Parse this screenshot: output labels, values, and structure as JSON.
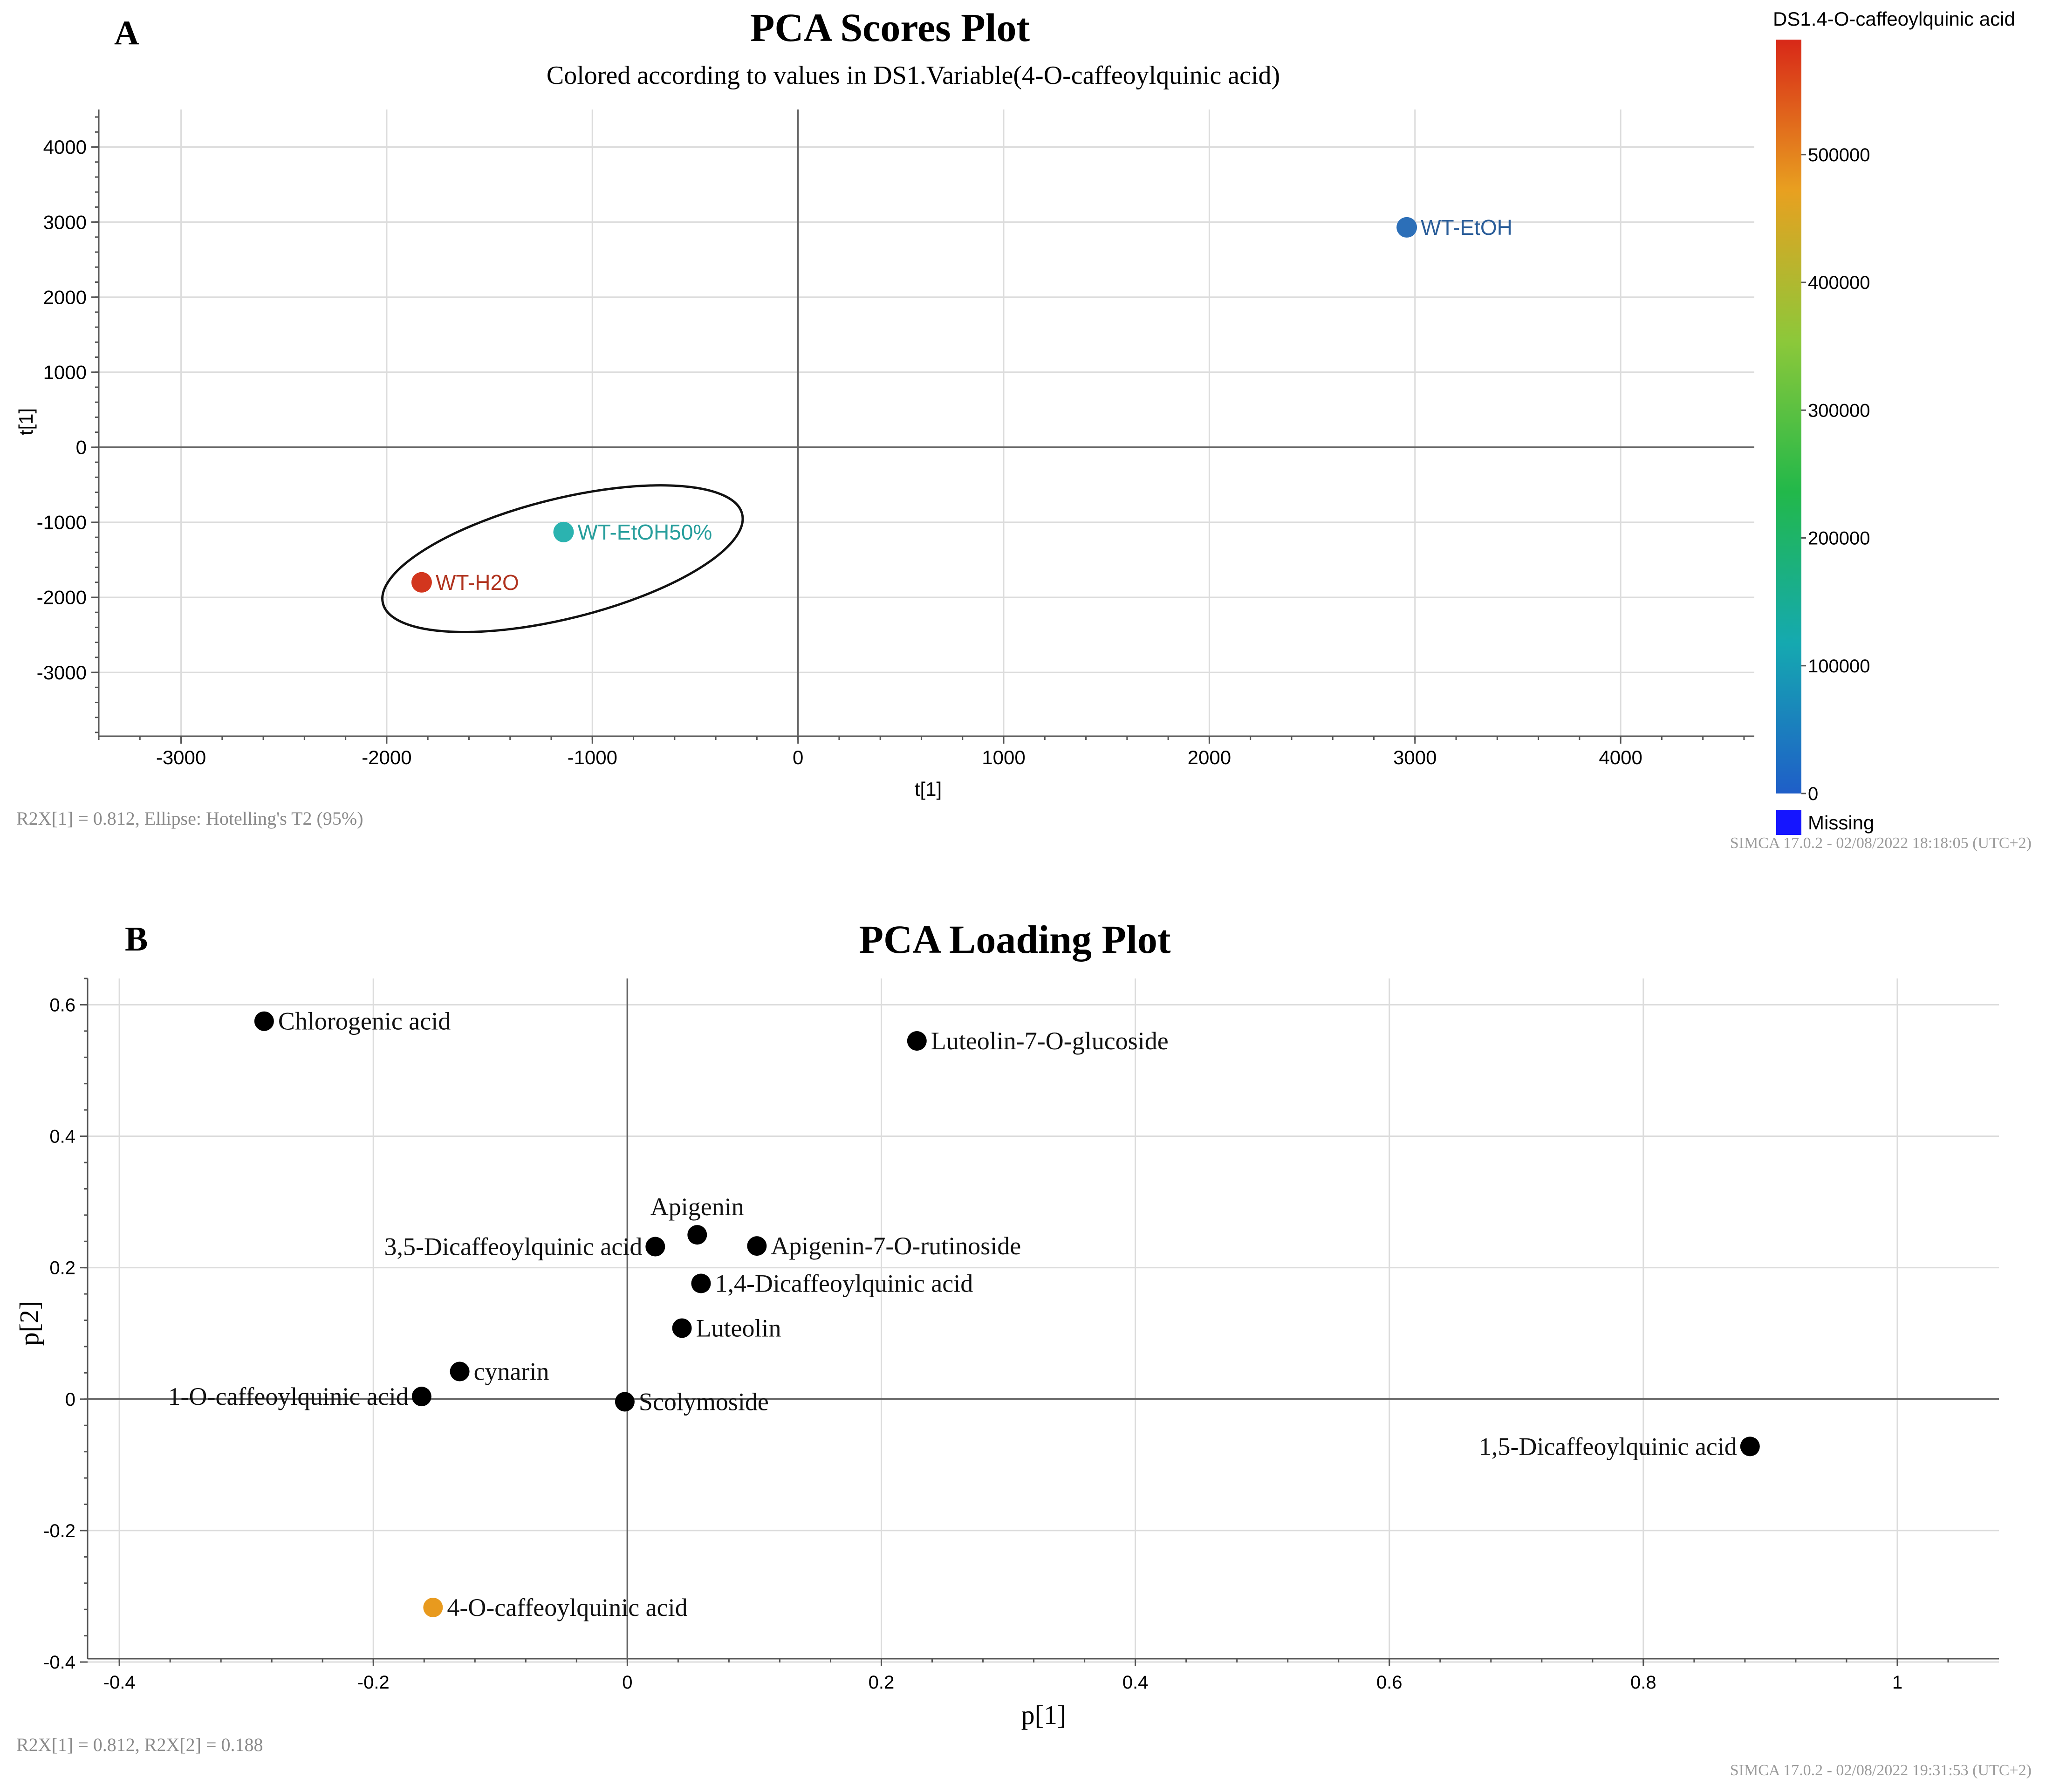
{
  "panel_a": {
    "letter": "A",
    "software_stamp": "SIMCA 17.0.2 - 02/08/2022 18:18:05 (UTC+2)",
    "colorbar": {
      "title": "DS1.4-O-caffeoylquinic acid",
      "ticks": [
        "0",
        "100000",
        "200000",
        "300000",
        "400000",
        "500000"
      ],
      "missing_label": "Missing",
      "missing_color": "#1515ff",
      "gradient": [
        "#1f5ec8",
        "#15a9b0",
        "#22b84a",
        "#8cc83a",
        "#e8a020",
        "#d82818"
      ]
    },
    "ellipse_note": "Ellipse: Hotelling's T2 (95%)"
  },
  "panel_b": {
    "letter": "B",
    "software_stamp": "SIMCA 17.0.2 - 02/08/2022 19:31:53 (UTC+2)"
  },
  "chart_data": [
    {
      "type": "scatter",
      "title": "PCA Scores Plot",
      "subtitle": "Colored according to values in DS1.Variable(4-O-caffeoylquinic acid)",
      "xlabel": "t[1]",
      "ylabel": "t[1]",
      "xlim": [
        -3400,
        4650
      ],
      "ylim": [
        -3850,
        4500
      ],
      "xticks": [
        -3000,
        -2000,
        -1000,
        0,
        1000,
        2000,
        3000,
        4000
      ],
      "yticks": [
        -3000,
        -2000,
        -1000,
        0,
        1000,
        2000,
        3000,
        4000
      ],
      "grid": true,
      "footnote": "R2X[1] = 0.812, Ellipse: Hotelling's T2 (95%)",
      "points": [
        {
          "label": "WT-EtOH",
          "x": 2960,
          "y": 2930,
          "color": "#2c6fb8",
          "label_color": "#2a5d99"
        },
        {
          "label": "WT-EtOH50%",
          "x": -1140,
          "y": -1130,
          "color": "#2bb3b0",
          "label_color": "#279e9c"
        },
        {
          "label": "WT-H2O",
          "x": -1830,
          "y": -1800,
          "color": "#d2361e",
          "label_color": "#b0331f"
        }
      ],
      "ellipse": {
        "cx": -1145,
        "cy": -1485,
        "rx": 1000,
        "ry": 930
      }
    },
    {
      "type": "scatter",
      "title": "PCA Loading Plot",
      "xlabel": "p[1]",
      "ylabel": "p[2]",
      "xlim": [
        -0.425,
        1.08
      ],
      "ylim": [
        -0.395,
        0.64
      ],
      "xticks": [
        -0.4,
        -0.2,
        0,
        0.2,
        0.4,
        0.6,
        0.8,
        1
      ],
      "yticks": [
        -0.4,
        -0.2,
        0,
        0.2,
        0.4,
        0.6
      ],
      "grid": true,
      "footnote": "R2X[1] = 0.812, R2X[2] = 0.188",
      "points": [
        {
          "label": "Chlorogenic acid",
          "x": -0.286,
          "y": 0.575,
          "color": "#000000",
          "pos": "right"
        },
        {
          "label": "Luteolin-7-O-glucoside",
          "x": 0.228,
          "y": 0.545,
          "color": "#000000",
          "pos": "right"
        },
        {
          "label": "Apigenin",
          "x": 0.055,
          "y": 0.25,
          "color": "#000000",
          "pos": "above"
        },
        {
          "label": "3,5-Dicaffeoylquinic acid",
          "x": 0.022,
          "y": 0.232,
          "color": "#000000",
          "pos": "left"
        },
        {
          "label": "Apigenin-7-O-rutinoside",
          "x": 0.102,
          "y": 0.233,
          "color": "#000000",
          "pos": "right"
        },
        {
          "label": "1,4-Dicaffeoylquinic acid",
          "x": 0.058,
          "y": 0.176,
          "color": "#000000",
          "pos": "right"
        },
        {
          "label": "Luteolin",
          "x": 0.043,
          "y": 0.108,
          "color": "#000000",
          "pos": "right"
        },
        {
          "label": "cynarin",
          "x": -0.132,
          "y": 0.042,
          "color": "#000000",
          "pos": "right"
        },
        {
          "label": "1-O-caffeoylquinic acid",
          "x": -0.162,
          "y": 0.004,
          "color": "#000000",
          "pos": "left"
        },
        {
          "label": "Scolymoside",
          "x": -0.002,
          "y": -0.004,
          "color": "#000000",
          "pos": "right"
        },
        {
          "label": "1,5-Dicaffeoylquinic acid",
          "x": 0.884,
          "y": -0.072,
          "color": "#000000",
          "pos": "left"
        },
        {
          "label": "4-O-caffeoylquinic acid",
          "x": -0.153,
          "y": -0.317,
          "color": "#e89a1e",
          "pos": "right"
        }
      ]
    }
  ]
}
